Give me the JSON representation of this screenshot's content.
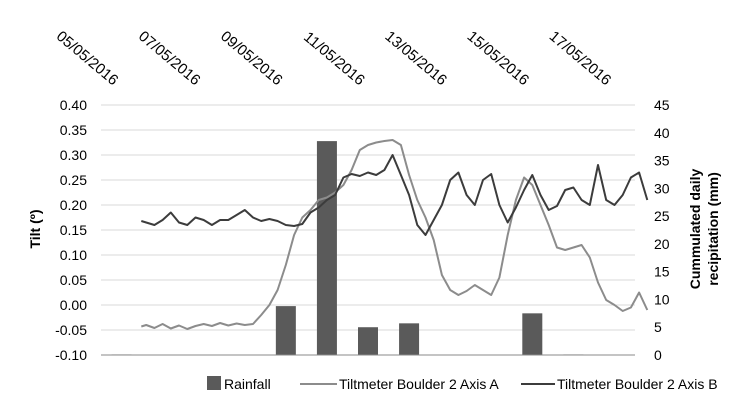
{
  "chart_data": {
    "type": "bar+line",
    "title": "",
    "xlabel": "",
    "date_ticks": [
      "05/05/2016",
      "07/05/2016",
      "09/05/2016",
      "11/05/2016",
      "13/05/2016",
      "15/05/2016",
      "17/05/2016"
    ],
    "x_start": "05/05/2016",
    "x_end": "18/05/2016",
    "left_axis": {
      "title": "Tilt (º)",
      "min": -0.1,
      "max": 0.4,
      "step": 0.05,
      "tick_labels": [
        "-0.10",
        "-0.05",
        "0.00",
        "0.05",
        "0.10",
        "0.15",
        "0.20",
        "0.25",
        "0.30",
        "0.35",
        "0.40"
      ]
    },
    "right_axis": {
      "title_line1": "Cummulated daily",
      "title_line2": "recipitation (mm)",
      "min": 0,
      "max": 45,
      "step": 5,
      "tick_labels": [
        "0",
        "5",
        "10",
        "15",
        "20",
        "25",
        "30",
        "35",
        "40",
        "45"
      ]
    },
    "bars": {
      "name": "Rainfall",
      "color": "#5a5a5a",
      "dates": [
        "05/05/2016",
        "06/05/2016",
        "07/05/2016",
        "08/05/2016",
        "09/05/2016",
        "10/05/2016",
        "11/05/2016",
        "12/05/2016",
        "13/05/2016",
        "14/05/2016",
        "15/05/2016",
        "16/05/2016",
        "17/05/2016"
      ],
      "values": [
        0.1,
        0,
        0,
        0,
        8.8,
        38.5,
        5.0,
        5.7,
        0,
        0,
        7.5,
        0.1,
        0
      ]
    },
    "series": [
      {
        "name": "Tiltmeter Boulder 2 Axis A",
        "color": "#8c8c8c",
        "day": [
          5.98,
          6.1,
          6.3,
          6.5,
          6.7,
          6.9,
          7.1,
          7.3,
          7.5,
          7.7,
          7.9,
          8.1,
          8.3,
          8.5,
          8.7,
          8.9,
          9.1,
          9.3,
          9.5,
          9.7,
          9.9,
          10.1,
          10.3,
          10.5,
          10.7,
          10.9,
          11.1,
          11.3,
          11.5,
          11.7,
          11.9,
          12.1,
          12.3,
          12.5,
          12.7,
          12.9,
          13.1,
          13.3,
          13.5,
          13.7,
          13.9,
          14.1,
          14.3,
          14.5,
          14.7,
          14.9,
          15.1,
          15.3,
          15.5,
          15.7,
          15.9,
          16.1,
          16.3,
          16.5,
          16.7,
          16.9,
          17.1,
          17.3,
          17.5,
          17.7,
          17.9,
          18.1,
          18.3
        ],
        "tilt": [
          -0.043,
          -0.04,
          -0.046,
          -0.038,
          -0.047,
          -0.041,
          -0.048,
          -0.042,
          -0.038,
          -0.042,
          -0.036,
          -0.041,
          -0.037,
          -0.04,
          -0.038,
          -0.02,
          0.0,
          0.03,
          0.08,
          0.14,
          0.175,
          0.19,
          0.21,
          0.215,
          0.225,
          0.24,
          0.27,
          0.31,
          0.32,
          0.325,
          0.328,
          0.33,
          0.32,
          0.26,
          0.21,
          0.175,
          0.13,
          0.06,
          0.03,
          0.02,
          0.028,
          0.04,
          0.03,
          0.02,
          0.055,
          0.14,
          0.21,
          0.255,
          0.24,
          0.2,
          0.16,
          0.115,
          0.11,
          0.115,
          0.12,
          0.095,
          0.045,
          0.01,
          0.0,
          -0.012,
          -0.005,
          0.025,
          -0.01
        ]
      },
      {
        "name": "Tiltmeter Boulder 2 Axis B",
        "color": "#3c3c3c",
        "day": [
          5.98,
          6.1,
          6.3,
          6.5,
          6.7,
          6.9,
          7.1,
          7.3,
          7.5,
          7.7,
          7.9,
          8.1,
          8.3,
          8.5,
          8.7,
          8.9,
          9.1,
          9.3,
          9.5,
          9.7,
          9.9,
          10.1,
          10.3,
          10.5,
          10.7,
          10.9,
          11.1,
          11.3,
          11.5,
          11.7,
          11.9,
          12.1,
          12.3,
          12.5,
          12.7,
          12.9,
          13.1,
          13.3,
          13.5,
          13.7,
          13.9,
          14.1,
          14.3,
          14.5,
          14.7,
          14.9,
          15.1,
          15.3,
          15.5,
          15.7,
          15.9,
          16.1,
          16.3,
          16.5,
          16.7,
          16.9,
          17.1,
          17.3,
          17.5,
          17.7,
          17.9,
          18.1,
          18.3
        ],
        "tilt": [
          0.168,
          0.165,
          0.16,
          0.17,
          0.185,
          0.165,
          0.16,
          0.175,
          0.17,
          0.16,
          0.17,
          0.17,
          0.18,
          0.19,
          0.175,
          0.168,
          0.172,
          0.168,
          0.16,
          0.158,
          0.162,
          0.185,
          0.195,
          0.21,
          0.22,
          0.255,
          0.262,
          0.258,
          0.265,
          0.26,
          0.27,
          0.3,
          0.26,
          0.22,
          0.16,
          0.14,
          0.17,
          0.2,
          0.25,
          0.265,
          0.22,
          0.2,
          0.25,
          0.262,
          0.2,
          0.165,
          0.195,
          0.23,
          0.26,
          0.22,
          0.19,
          0.198,
          0.23,
          0.235,
          0.21,
          0.2,
          0.28,
          0.21,
          0.2,
          0.22,
          0.255,
          0.265,
          0.21
        ]
      }
    ],
    "legend": {
      "placement": "bottom",
      "items": [
        "Rainfall",
        "Tiltmeter Boulder 2 Axis A",
        "Tiltmeter Boulder 2 Axis B"
      ]
    }
  }
}
